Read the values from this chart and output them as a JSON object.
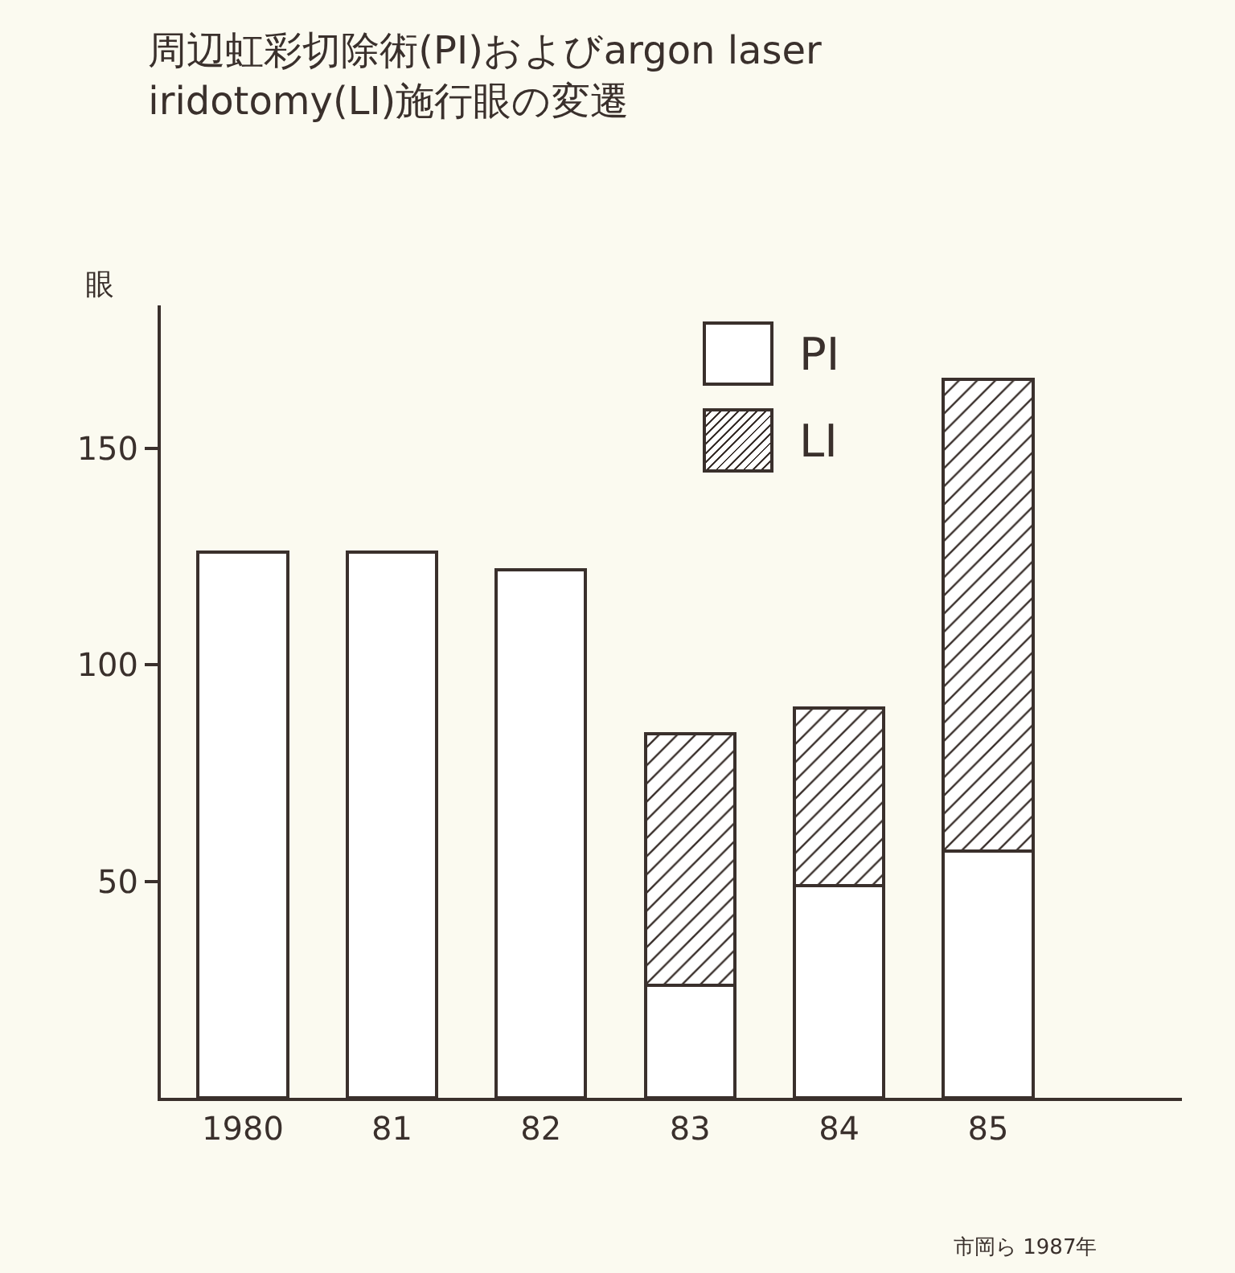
{
  "chart_data": {
    "type": "bar",
    "title": "周辺虹彩切除術(PI)およびargon laser\niridotomy(LI)施行眼の変遷",
    "ylabel": "眼",
    "annotations": [
      "市岡ら 1987年"
    ],
    "categories": [
      "1980",
      "81",
      "82",
      "83",
      "84",
      "85"
    ],
    "series": [
      {
        "name": "PI",
        "color": "#ffffff",
        "values": [
          126,
          126,
          122,
          26,
          49,
          57
        ]
      },
      {
        "name": "LI",
        "color": "#3a302c",
        "values": [
          null,
          null,
          null,
          58,
          41,
          109
        ]
      }
    ],
    "stacked": true,
    "ylim": [
      0,
      183
    ],
    "yticks": [
      50,
      100,
      150
    ],
    "grid": false,
    "legend": "top right"
  }
}
